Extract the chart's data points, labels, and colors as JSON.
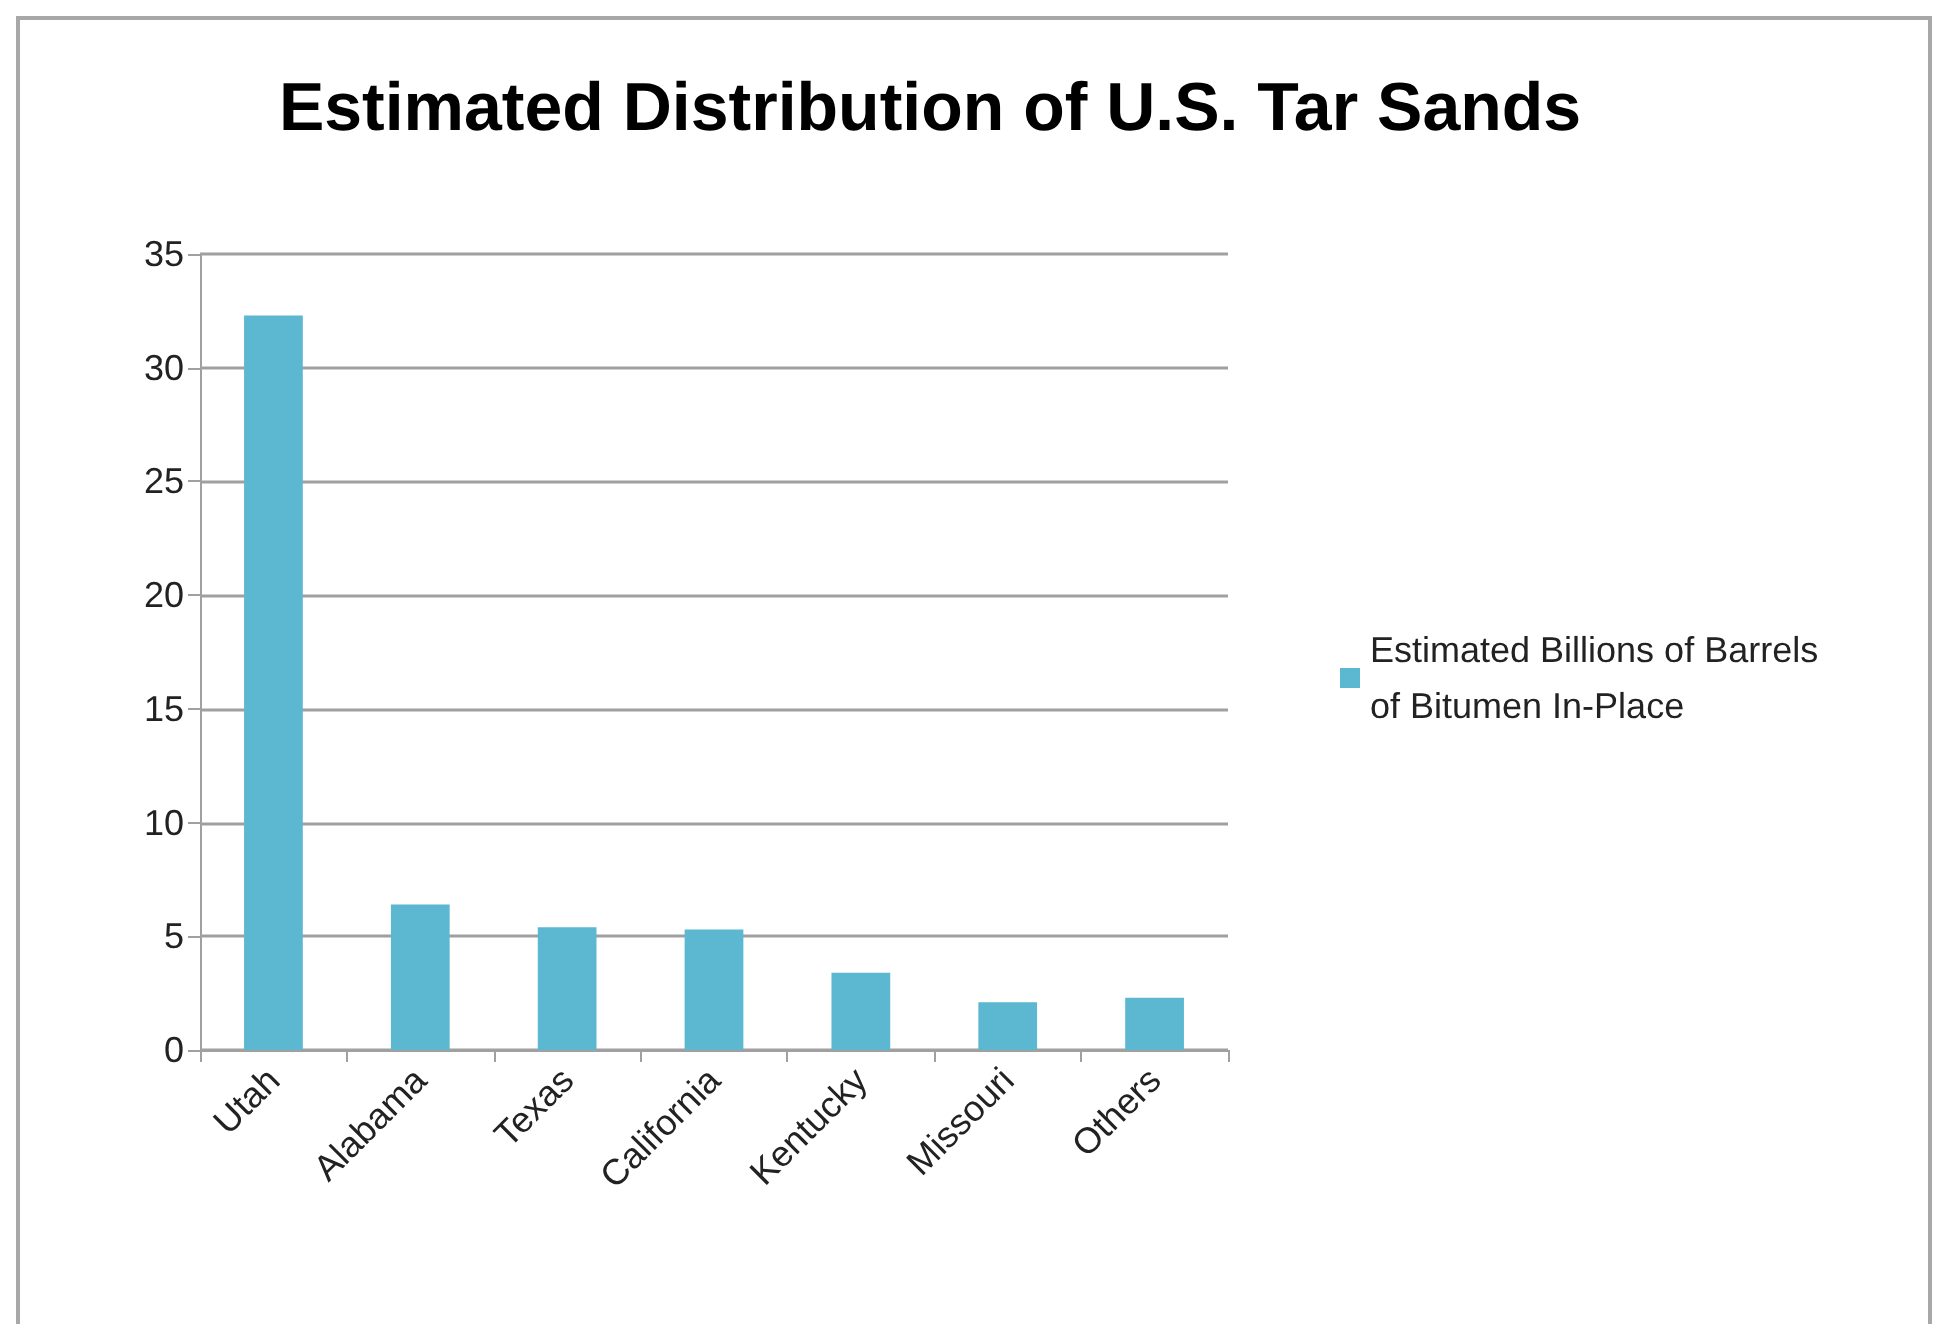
{
  "chart_data": {
    "type": "bar",
    "title": "Estimated Distribution of U.S. Tar Sands",
    "categories": [
      "Utah",
      "Alabama",
      "Texas",
      "California",
      "Kentucky",
      "Missouri",
      "Others"
    ],
    "series": [
      {
        "name": "Estimated Billions of Barrels\nof Bitumen In-Place",
        "color": "#5bb8d0",
        "values": [
          32.3,
          6.4,
          5.4,
          5.3,
          3.4,
          2.1,
          2.3
        ]
      }
    ],
    "ylim": [
      0,
      35
    ],
    "yticks": [
      0,
      5,
      10,
      15,
      20,
      25,
      30,
      35
    ],
    "grid": "y",
    "legend": "right"
  }
}
